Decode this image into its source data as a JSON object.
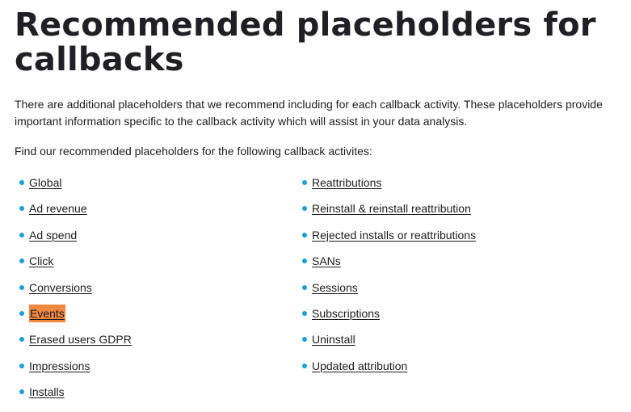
{
  "page": {
    "title": "Recommended placeholders for callbacks",
    "intro": "There are additional placeholders that we recommend including for each callback activity. These placeholders provide important information specific to the callback activity which will assist in your data analysis.",
    "find_text": "Find our recommended placeholders for the following callback activites:"
  },
  "lists": {
    "left": [
      {
        "label": "Global"
      },
      {
        "label": "Ad revenue"
      },
      {
        "label": "Ad spend"
      },
      {
        "label": "Click"
      },
      {
        "label": "Conversions"
      },
      {
        "label": "Events",
        "highlighted": true
      },
      {
        "label": "Erased users GDPR"
      },
      {
        "label": "Impressions"
      },
      {
        "label": "Installs"
      }
    ],
    "right": [
      {
        "label": "Reattributions"
      },
      {
        "label": "Reinstall & reinstall reattribution"
      },
      {
        "label": "Rejected installs or reattributions"
      },
      {
        "label": "SANs"
      },
      {
        "label": "Sessions"
      },
      {
        "label": "Subscriptions"
      },
      {
        "label": "Uninstall"
      },
      {
        "label": "Updated attribution"
      }
    ]
  },
  "colors": {
    "bullet": "#1a9fd6",
    "highlight": "#f3893f",
    "text": "#1d1d1f"
  }
}
